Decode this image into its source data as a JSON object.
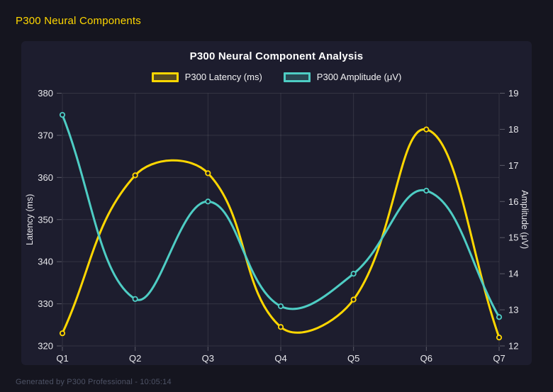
{
  "page": {
    "header_title": "P300 Neural Components",
    "footer_text": "Generated by P300 Professional - 10:05:14"
  },
  "colors": {
    "page_bg": "#15151f",
    "panel_bg": "#1d1d2e",
    "header_title": "#FFD700",
    "chart_title": "#ffffff",
    "tick_text": "#e8e8ec",
    "axis_title_text": "#e8e8ec",
    "grid_line": "rgba(255,255,255,0.10)",
    "tick_mark": "rgba(255,255,255,0.28)",
    "footer_text": "#4e5366",
    "latency_series": "#FFD700",
    "amplitude_series": "#4ECDC4"
  },
  "chart_data": {
    "type": "line",
    "title": "P300 Neural Component Analysis",
    "categories": [
      "Q1",
      "Q2",
      "Q3",
      "Q4",
      "Q5",
      "Q6",
      "Q7"
    ],
    "series": [
      {
        "name": "P300 Latency (ms)",
        "id": "latency",
        "axis": "left",
        "color": "#FFD700",
        "values": [
          323,
          360.5,
          361,
          324.5,
          331,
          371.4,
          322
        ]
      },
      {
        "name": "P300 Amplitude (μV)",
        "id": "amplitude",
        "axis": "right",
        "color": "#4ECDC4",
        "values": [
          18.4,
          13.3,
          16.0,
          13.1,
          14.0,
          16.3,
          12.8
        ]
      }
    ],
    "left_axis": {
      "label": "Latency (ms)",
      "min": 320,
      "max": 380,
      "step": 10
    },
    "right_axis": {
      "label": "Amplitude (μV)",
      "min": 12,
      "max": 19,
      "step": 1
    },
    "grid": true,
    "legend_position": "top",
    "line_tension": 0.4,
    "point_style": "ring"
  }
}
